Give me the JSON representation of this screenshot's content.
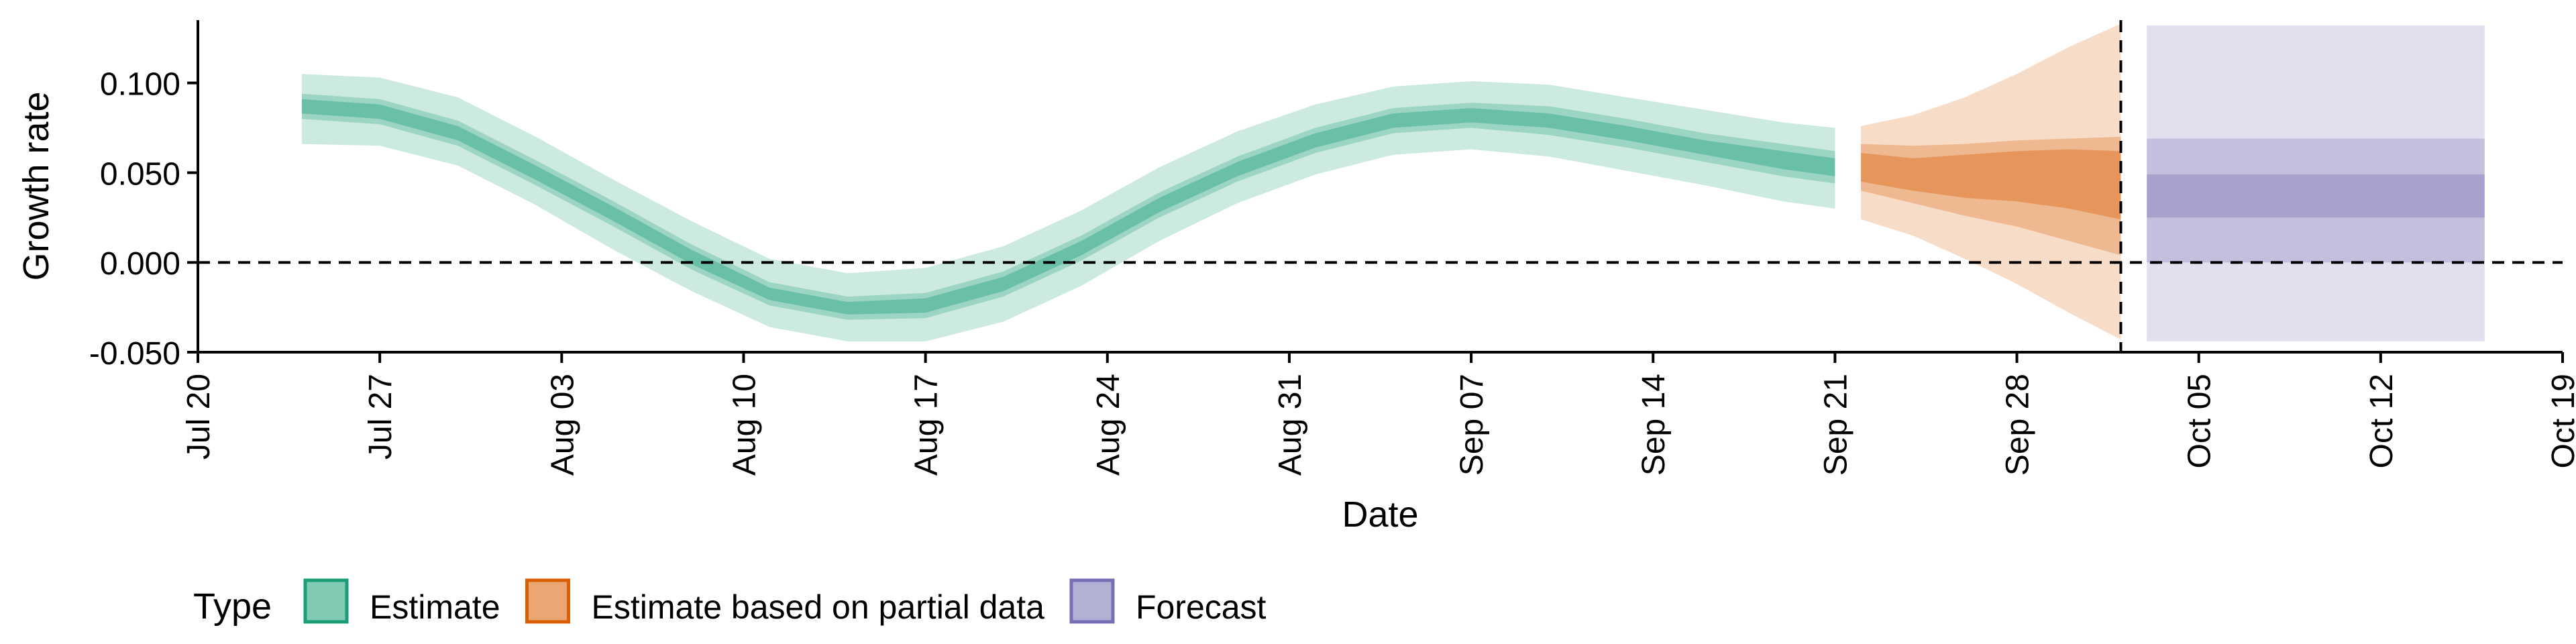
{
  "chart_data": {
    "type": "area",
    "xlabel": "Date",
    "ylabel": "Growth rate",
    "x_ticks": [
      "Jul 20",
      "Jul 27",
      "Aug 03",
      "Aug 10",
      "Aug 17",
      "Aug 24",
      "Aug 31",
      "Sep 07",
      "Sep 14",
      "Sep 21",
      "Sep 28",
      "Oct 05",
      "Oct 12",
      "Oct 19"
    ],
    "y_ticks": [
      "-0.050",
      "0.000",
      "0.050",
      "0.100"
    ],
    "xlim": [
      "2020-07-20",
      "2020-10-19"
    ],
    "ylim": [
      -0.05,
      0.135
    ],
    "hline": 0.0,
    "vline_date": "2020-10-02",
    "grid": false,
    "legend": {
      "title": "Type",
      "position": "bottom",
      "entries": [
        "Estimate",
        "Estimate based on partial data",
        "Forecast"
      ]
    },
    "colors": {
      "Estimate": "#1b9e77",
      "Estimate based on partial data": "#d95f02",
      "Forecast": "#7570b3"
    },
    "series": [
      {
        "name": "Estimate",
        "x": [
          "2020-07-24",
          "2020-07-27",
          "2020-07-30",
          "2020-08-02",
          "2020-08-05",
          "2020-08-08",
          "2020-08-11",
          "2020-08-14",
          "2020-08-17",
          "2020-08-20",
          "2020-08-23",
          "2020-08-26",
          "2020-08-29",
          "2020-09-01",
          "2020-09-04",
          "2020-09-07",
          "2020-09-10",
          "2020-09-13",
          "2020-09-16",
          "2020-09-19",
          "2020-09-21"
        ],
        "median": [
          0.087,
          0.084,
          0.072,
          0.05,
          0.027,
          0.003,
          -0.018,
          -0.026,
          -0.024,
          -0.012,
          0.008,
          0.032,
          0.052,
          0.068,
          0.079,
          0.082,
          0.079,
          0.072,
          0.064,
          0.057,
          0.053
        ],
        "inner_lower": [
          0.083,
          0.08,
          0.068,
          0.046,
          0.023,
          -0.001,
          -0.021,
          -0.029,
          -0.028,
          -0.016,
          0.004,
          0.028,
          0.048,
          0.064,
          0.075,
          0.078,
          0.075,
          0.068,
          0.06,
          0.052,
          0.048
        ],
        "inner_upper": [
          0.091,
          0.088,
          0.076,
          0.054,
          0.031,
          0.007,
          -0.014,
          -0.022,
          -0.02,
          -0.008,
          0.012,
          0.036,
          0.056,
          0.072,
          0.083,
          0.086,
          0.083,
          0.076,
          0.068,
          0.062,
          0.058
        ],
        "mid_lower": [
          0.08,
          0.077,
          0.065,
          0.043,
          0.02,
          -0.004,
          -0.024,
          -0.032,
          -0.031,
          -0.019,
          0.001,
          0.025,
          0.045,
          0.061,
          0.072,
          0.075,
          0.071,
          0.064,
          0.056,
          0.048,
          0.044
        ],
        "mid_upper": [
          0.094,
          0.091,
          0.079,
          0.057,
          0.034,
          0.01,
          -0.011,
          -0.019,
          -0.017,
          -0.005,
          0.015,
          0.039,
          0.059,
          0.075,
          0.086,
          0.089,
          0.087,
          0.08,
          0.072,
          0.066,
          0.062
        ],
        "outer_lower": [
          0.066,
          0.065,
          0.054,
          0.032,
          0.007,
          -0.016,
          -0.036,
          -0.044,
          -0.044,
          -0.033,
          -0.013,
          0.012,
          0.033,
          0.049,
          0.06,
          0.063,
          0.059,
          0.051,
          0.043,
          0.034,
          0.03
        ],
        "outer_upper": [
          0.105,
          0.103,
          0.092,
          0.07,
          0.046,
          0.023,
          0.002,
          -0.006,
          -0.003,
          0.009,
          0.029,
          0.053,
          0.073,
          0.088,
          0.098,
          0.101,
          0.099,
          0.092,
          0.085,
          0.078,
          0.075
        ]
      },
      {
        "name": "Estimate based on partial data",
        "x": [
          "2020-09-22",
          "2020-09-24",
          "2020-09-26",
          "2020-09-28",
          "2020-09-30",
          "2020-10-02"
        ],
        "median": [
          0.053,
          0.048,
          0.046,
          0.049,
          0.047,
          0.043
        ],
        "inner_lower": [
          0.045,
          0.04,
          0.036,
          0.034,
          0.03,
          0.024
        ],
        "inner_upper": [
          0.061,
          0.058,
          0.06,
          0.062,
          0.063,
          0.062
        ],
        "mid_lower": [
          0.04,
          0.033,
          0.026,
          0.02,
          0.012,
          0.004
        ],
        "mid_upper": [
          0.066,
          0.065,
          0.066,
          0.068,
          0.069,
          0.07
        ],
        "outer_lower": [
          0.024,
          0.015,
          0.002,
          -0.012,
          -0.028,
          -0.043
        ],
        "outer_upper": [
          0.076,
          0.082,
          0.092,
          0.105,
          0.12,
          0.133
        ]
      },
      {
        "name": "Forecast",
        "x": [
          "2020-10-03",
          "2020-10-16"
        ],
        "median": [
          0.037,
          0.037
        ],
        "inner_lower": [
          0.025,
          0.025
        ],
        "inner_upper": [
          0.049,
          0.049
        ],
        "mid_lower": [
          0.0,
          0.0
        ],
        "mid_upper": [
          0.069,
          0.069
        ],
        "outer_lower": [
          -0.044,
          -0.044
        ],
        "outer_upper": [
          0.132,
          0.132
        ]
      }
    ]
  }
}
